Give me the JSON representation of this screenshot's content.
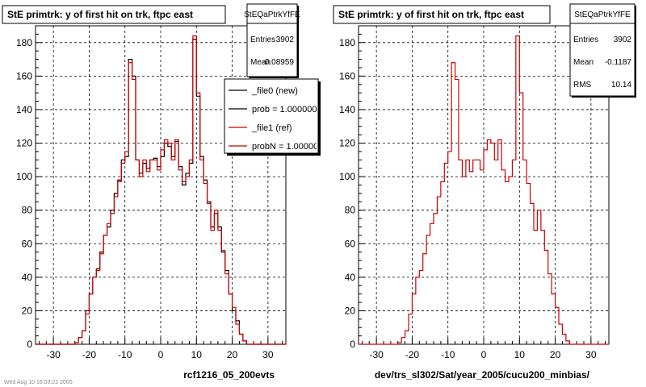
{
  "chart_data": [
    {
      "type": "histogram",
      "title": "StE primtrk: y of first hit on trk, ftpc east",
      "xlabel": "rcf1216_05_200evts",
      "xlim": [
        -35,
        35
      ],
      "ylim": [
        0,
        190
      ],
      "x_ticks": [
        -30,
        -20,
        -10,
        0,
        10,
        20,
        30
      ],
      "y_ticks": [
        0,
        20,
        40,
        60,
        80,
        100,
        120,
        140,
        160,
        180
      ],
      "grid": true,
      "bin_width": 1,
      "stats": {
        "name": "StEQaPtrkYfFE",
        "entries_label": "Entries",
        "entries": "3902",
        "mean_label": "Mean",
        "mean": "-0.08959"
      },
      "legend": {
        "placement": "top-right",
        "entries": [
          {
            "label": "_file0 (new)",
            "color": "#000000"
          },
          {
            "label": "prob = 1.000000",
            "color": "#000000"
          },
          {
            "label": "_file1 (ref)",
            "color": "#cc0000"
          },
          {
            "label": "probN = 1.000000",
            "color": "#cc0000"
          }
        ]
      },
      "series": [
        {
          "name": "_file0 (new)",
          "color": "#000000",
          "bins_from": -35,
          "values": [
            0,
            0,
            0,
            0,
            0,
            0,
            0,
            0,
            0,
            0,
            0,
            1,
            4,
            8,
            20,
            30,
            40,
            45,
            55,
            65,
            70,
            80,
            90,
            98,
            110,
            112,
            170,
            160,
            110,
            102,
            108,
            105,
            110,
            111,
            106,
            112,
            120,
            118,
            112,
            121,
            106,
            95,
            102,
            108,
            182,
            148,
            112,
            98,
            85,
            70,
            78,
            70,
            55,
            44,
            30,
            20,
            14,
            6,
            2,
            0,
            0,
            0,
            0,
            0,
            0,
            0,
            0,
            0,
            0,
            0
          ]
        },
        {
          "name": "_file1 (ref)",
          "color": "#cc0000",
          "bins_from": -35,
          "values": [
            0,
            0,
            0,
            0,
            0,
            0,
            0,
            0,
            0,
            0,
            0,
            1,
            4,
            8,
            18,
            30,
            40,
            44,
            54,
            65,
            72,
            78,
            88,
            97,
            108,
            115,
            168,
            158,
            110,
            100,
            110,
            103,
            110,
            110,
            104,
            116,
            122,
            120,
            110,
            122,
            104,
            97,
            100,
            110,
            184,
            150,
            110,
            96,
            84,
            68,
            80,
            68,
            56,
            42,
            30,
            22,
            12,
            6,
            2,
            0,
            0,
            0,
            0,
            0,
            0,
            0,
            0,
            0,
            0,
            0
          ]
        }
      ],
      "footer": "Wed Aug 10 16:03:22 2005"
    },
    {
      "type": "histogram",
      "title": "StE primtrk: y of first hit on trk, ftpc east",
      "xlabel": "dev/trs_sl302/Sat/year_2005/cucu200_minbias/",
      "xlim": [
        -35,
        35
      ],
      "ylim": [
        0,
        190
      ],
      "x_ticks": [
        -30,
        -20,
        -10,
        0,
        10,
        20,
        30
      ],
      "y_ticks": [
        0,
        20,
        40,
        60,
        80,
        100,
        120,
        140,
        160,
        180
      ],
      "grid": true,
      "bin_width": 1,
      "stats": {
        "name": "StEQaPtrkYfFE",
        "entries_label": "Entries",
        "entries": "3902",
        "mean_label": "Mean",
        "mean": "-0.1187",
        "rms_label": "RMS",
        "rms": "10.14"
      },
      "series": [
        {
          "name": "",
          "color": "#cc0000",
          "bins_from": -35,
          "values": [
            0,
            0,
            0,
            0,
            0,
            0,
            0,
            0,
            0,
            0,
            0,
            1,
            4,
            8,
            18,
            30,
            40,
            44,
            54,
            65,
            72,
            78,
            88,
            97,
            108,
            115,
            168,
            158,
            110,
            100,
            110,
            103,
            110,
            110,
            104,
            116,
            122,
            120,
            110,
            122,
            104,
            97,
            100,
            110,
            184,
            150,
            110,
            96,
            84,
            68,
            80,
            68,
            56,
            42,
            30,
            22,
            12,
            6,
            2,
            0,
            0,
            0,
            0,
            0,
            0,
            0,
            0,
            0,
            0,
            0
          ]
        }
      ]
    }
  ]
}
